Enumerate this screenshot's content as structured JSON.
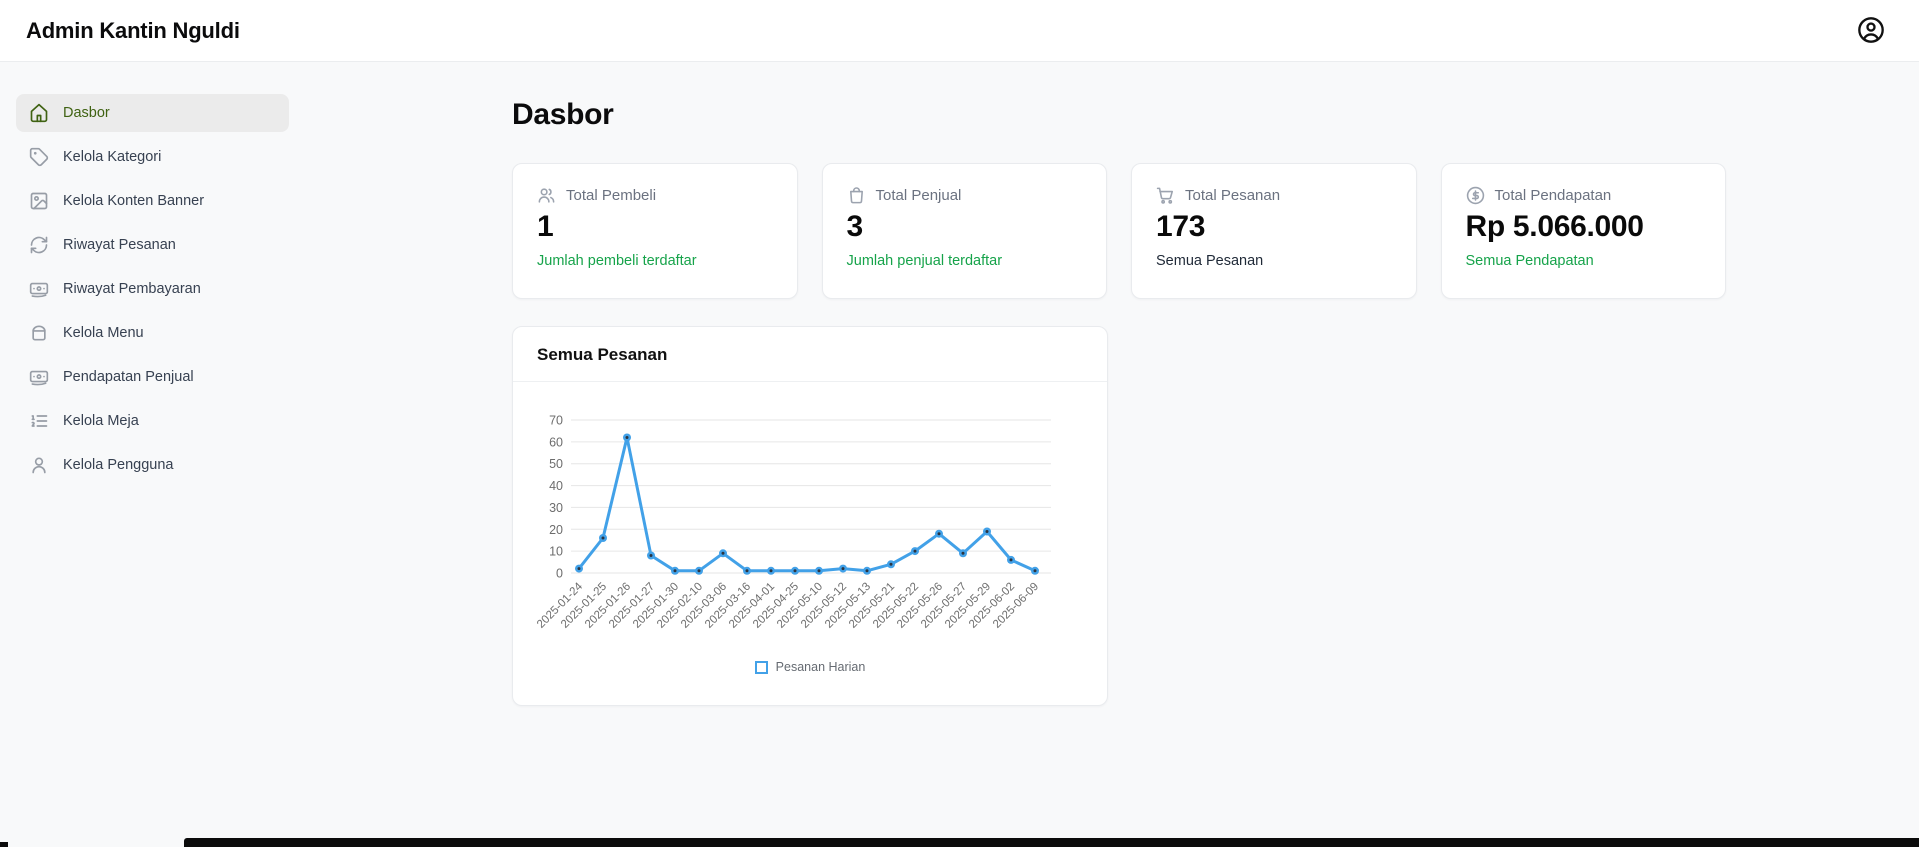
{
  "header": {
    "title": "Admin Kantin Nguldi",
    "user_icon": "circle-user-icon"
  },
  "sidebar": {
    "items": [
      {
        "label": "Dasbor",
        "icon": "home-icon",
        "active": true
      },
      {
        "label": "Kelola Kategori",
        "icon": "tag-icon",
        "active": false
      },
      {
        "label": "Kelola Konten Banner",
        "icon": "image-icon",
        "active": false
      },
      {
        "label": "Riwayat Pesanan",
        "icon": "refresh-icon",
        "active": false
      },
      {
        "label": "Riwayat Pembayaran",
        "icon": "banknote-icon",
        "active": false
      },
      {
        "label": "Kelola Menu",
        "icon": "food-box-icon",
        "active": false
      },
      {
        "label": "Pendapatan Penjual",
        "icon": "banknote-icon",
        "active": false
      },
      {
        "label": "Kelola Meja",
        "icon": "list-ordered-icon",
        "active": false
      },
      {
        "label": "Kelola Pengguna",
        "icon": "user-icon",
        "active": false
      }
    ]
  },
  "main": {
    "page_title": "Dasbor",
    "stat_cards": [
      {
        "icon": "users-icon",
        "label": "Total Pembeli",
        "value": "1",
        "subtext": "Jumlah pembeli terdaftar",
        "subtext_color": "#16a34a"
      },
      {
        "icon": "shopping-bag-icon",
        "label": "Total Penjual",
        "value": "3",
        "subtext": "Jumlah penjual terdaftar",
        "subtext_color": "#16a34a"
      },
      {
        "icon": "shopping-cart-icon",
        "label": "Total Pesanan",
        "value": "173",
        "subtext": "Semua Pesanan",
        "subtext_color": "#1f2937"
      },
      {
        "icon": "circle-dollar-icon",
        "label": "Total Pendapatan",
        "value": "Rp 5.066.000",
        "subtext": "Semua Pendapatan",
        "subtext_color": "#16a34a"
      }
    ],
    "chart_card": {
      "title": "Semua Pesanan"
    }
  },
  "chart_data": {
    "type": "line",
    "title": "Semua Pesanan",
    "x": [
      "2025-01-24",
      "2025-01-25",
      "2025-01-26",
      "2025-01-27",
      "2025-01-30",
      "2025-02-10",
      "2025-03-06",
      "2025-03-16",
      "2025-04-01",
      "2025-04-25",
      "2025-05-10",
      "2025-05-12",
      "2025-05-13",
      "2025-05-21",
      "2025-05-22",
      "2025-05-26",
      "2025-05-27",
      "2025-05-29",
      "2025-06-02",
      "2025-06-09"
    ],
    "series": [
      {
        "name": "Pesanan Harian",
        "values": [
          2,
          16,
          62,
          8,
          1,
          1,
          9,
          1,
          1,
          1,
          1,
          2,
          1,
          4,
          10,
          18,
          9,
          19,
          6,
          1
        ]
      }
    ],
    "xlabel": "",
    "ylabel": "",
    "ylim": [
      0,
      70
    ],
    "yticks": [
      0,
      10,
      20,
      30,
      40,
      50,
      60,
      70
    ],
    "grid": true,
    "legend_position": "bottom",
    "line_color": "#42a1e8",
    "point_core_color": "#2b3440",
    "grid_color": "#e6e6e6",
    "tick_color": "#6d6d6d"
  },
  "colors": {
    "accent_green": "#16a34a",
    "sidebar_active_green": "#3f6212",
    "chart_blue": "#42a1e8"
  }
}
